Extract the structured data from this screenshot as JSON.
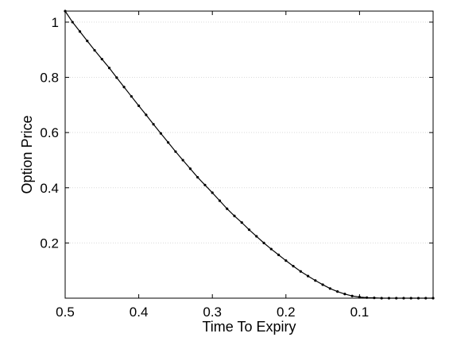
{
  "chart_data": {
    "type": "line",
    "title": "",
    "xlabel": "Time To Expiry",
    "ylabel": "Option Price",
    "xlim": [
      0.5,
      0.0
    ],
    "ylim": [
      0.0,
      1.04
    ],
    "x_reversed": true,
    "grid": "horizontal",
    "x_ticks": [
      0.5,
      0.4,
      0.3,
      0.2,
      0.1
    ],
    "x_tick_labels": [
      "0.5",
      "0.4",
      "0.3",
      "0.2",
      "0.1"
    ],
    "y_ticks": [
      0.2,
      0.4,
      0.6,
      0.8,
      1.0
    ],
    "y_tick_labels": [
      "0.2",
      "0.4",
      "0.6",
      "0.8",
      "1"
    ],
    "line_color": "#000000",
    "marker": "dot",
    "series": [
      {
        "x": [
          0.5,
          0.49,
          0.48,
          0.47,
          0.46,
          0.45,
          0.44,
          0.43,
          0.42,
          0.41,
          0.4,
          0.39,
          0.38,
          0.37,
          0.36,
          0.35,
          0.34,
          0.33,
          0.32,
          0.31,
          0.3,
          0.29,
          0.28,
          0.27,
          0.26,
          0.25,
          0.24,
          0.23,
          0.22,
          0.21,
          0.2,
          0.19,
          0.18,
          0.17,
          0.16,
          0.15,
          0.14,
          0.13,
          0.12,
          0.11,
          0.1,
          0.09,
          0.08,
          0.07,
          0.06,
          0.05,
          0.04,
          0.03,
          0.02,
          0.01,
          0.0
        ],
        "y": [
          1.04,
          1.0,
          0.966,
          0.932,
          0.898,
          0.866,
          0.834,
          0.799,
          0.765,
          0.731,
          0.697,
          0.664,
          0.63,
          0.597,
          0.564,
          0.531,
          0.5,
          0.469,
          0.438,
          0.41,
          0.382,
          0.353,
          0.324,
          0.298,
          0.274,
          0.248,
          0.224,
          0.2,
          0.178,
          0.157,
          0.136,
          0.116,
          0.097,
          0.08,
          0.064,
          0.049,
          0.035,
          0.024,
          0.015,
          0.008,
          0.004,
          0.002,
          0.001,
          0.0,
          0.0,
          0.0,
          0.0,
          0.0,
          0.0,
          0.0,
          0.0
        ]
      }
    ]
  }
}
